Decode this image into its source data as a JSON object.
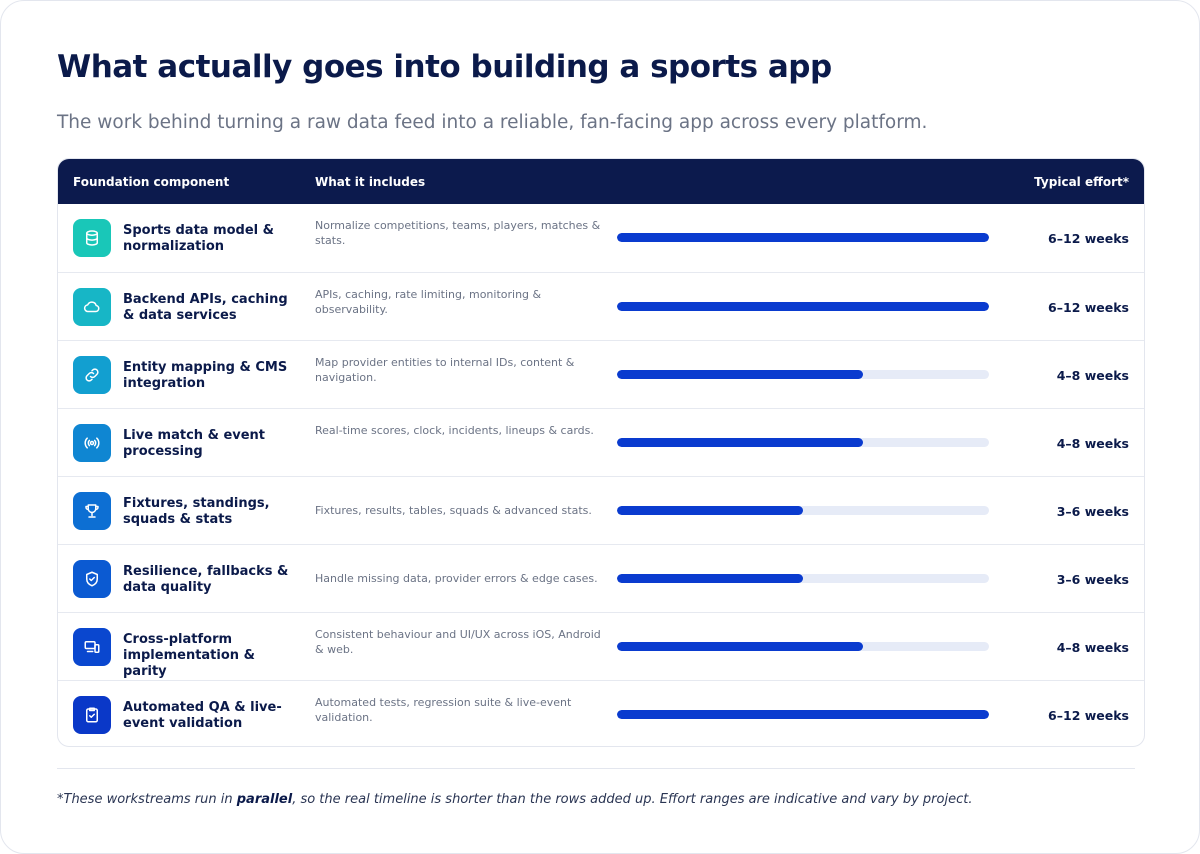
{
  "title": "What actually goes into building a sports app",
  "subtitle": "The work behind turning a raw data feed into a reliable, fan-facing app across every platform.",
  "table": {
    "headers": {
      "component": "Foundation component",
      "includes": "What it includes",
      "effort": "Typical effort*"
    },
    "rows": [
      {
        "icon": "database-icon",
        "color": "#19c7b8",
        "component": "Sports data model & normalization",
        "includes": "Normalize competitions, teams, players, matches & stats.",
        "effort": "6–12 weeks",
        "level": 1.0
      },
      {
        "icon": "cloud-icon",
        "color": "#17b6c6",
        "component": "Backend APIs, caching & data services",
        "includes": "APIs, caching, rate limiting, monitoring & observability.",
        "effort": "6–12 weeks",
        "level": 1.0
      },
      {
        "icon": "link-icon",
        "color": "#129fd0",
        "component": "Entity mapping & CMS integration",
        "includes": "Map provider entities to internal IDs, content & navigation.",
        "effort": "4–8 weeks",
        "level": 0.66
      },
      {
        "icon": "broadcast-icon",
        "color": "#0f86d2",
        "component": "Live match & event processing",
        "includes": "Real-time scores, clock, incidents, lineups & cards.",
        "effort": "4–8 weeks",
        "level": 0.66
      },
      {
        "icon": "trophy-icon",
        "color": "#0d6fd3",
        "component": "Fixtures, standings, squads & stats",
        "includes": "Fixtures, results, tables, squads & advanced stats.",
        "effort": "3–6 weeks",
        "level": 0.5
      },
      {
        "icon": "shield-check-icon",
        "color": "#0b5ad2",
        "component": "Resilience, fallbacks & data quality",
        "includes": "Handle missing data, provider errors & edge cases.",
        "effort": "3–6 weeks",
        "level": 0.5
      },
      {
        "icon": "devices-icon",
        "color": "#0a47cf",
        "component": "Cross-platform implementation & parity",
        "includes": "Consistent behaviour and UI/UX across iOS, Android & web.",
        "effort": "4–8 weeks",
        "level": 0.66
      },
      {
        "icon": "clipboard-check-icon",
        "color": "#0a38c8",
        "component": "Automated QA & live-event validation",
        "includes": "Automated tests, regression suite & live-event validation.",
        "effort": "6–12 weeks",
        "level": 1.0
      }
    ]
  },
  "footnote": {
    "before": "*These workstreams run in ",
    "emphasis": "parallel",
    "after": ", so the real timeline is shorter than the rows added up. Effort ranges are indicative and vary by project."
  }
}
